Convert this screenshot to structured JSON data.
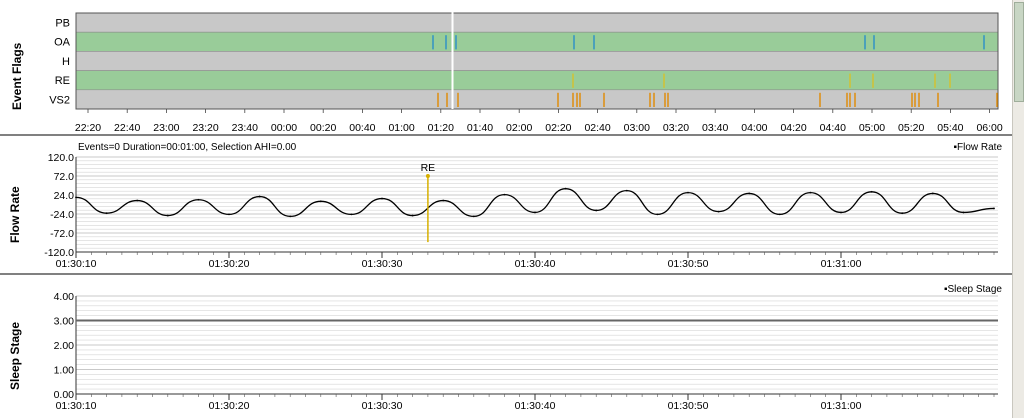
{
  "event_flags": {
    "title": "Event Flags",
    "rows": [
      "PB",
      "OA",
      "H",
      "RE",
      "VS2"
    ],
    "row_colors": [
      "#c8c8c8",
      "#99cc99",
      "#c8c8c8",
      "#99cc99",
      "#c8c8c8"
    ],
    "time_labels": [
      "22:20",
      "22:40",
      "23:00",
      "23:20",
      "23:40",
      "00:00",
      "00:20",
      "00:40",
      "01:00",
      "01:20",
      "01:40",
      "02:00",
      "02:20",
      "02:40",
      "03:00",
      "03:20",
      "03:40",
      "04:00",
      "04:20",
      "04:40",
      "05:00",
      "05:20",
      "05:40",
      "06:00"
    ],
    "cursor_color": "#ffffff",
    "oa_color": "#2a8fc8",
    "re_color": "#d7c02a",
    "vs2_color": "#e08a00"
  },
  "flow_rate": {
    "title": "Flow Rate",
    "info": "Events=0 Duration=00:01:00, Selection AHI=0.00",
    "legend": "Flow Rate",
    "y_ticks": [
      "120.0",
      "72.0",
      "24.0",
      "-24.0",
      "-72.0",
      "-120.0"
    ],
    "x_ticks": [
      "01:30:10",
      "01:30:20",
      "01:30:30",
      "01:30:40",
      "01:30:50",
      "01:31:00"
    ],
    "event_label": "RE",
    "event_color": "#d7b000"
  },
  "sleep_stage": {
    "title": "Sleep Stage",
    "legend": "Sleep Stage",
    "y_ticks": [
      "4.00",
      "3.00",
      "2.00",
      "1.00",
      "0.00"
    ],
    "x_ticks": [
      "01:30:10",
      "01:30:20",
      "01:30:30",
      "01:30:40",
      "01:30:50",
      "01:31:00"
    ]
  },
  "chart_data": [
    {
      "type": "line",
      "title": "",
      "ylabel": "Flow Rate",
      "ylim": [
        -120,
        120
      ],
      "x_range": [
        "01:30:10",
        "01:31:10"
      ],
      "x_seconds": [
        0,
        2,
        4,
        6,
        8,
        10,
        12,
        14,
        16,
        18,
        20,
        22,
        24,
        26,
        28,
        30,
        32,
        34,
        36,
        38,
        40,
        42,
        44,
        46,
        48,
        50,
        52,
        54,
        56,
        58,
        60
      ],
      "values": [
        18,
        -22,
        10,
        -28,
        12,
        -25,
        20,
        -30,
        8,
        -25,
        15,
        -28,
        10,
        -30,
        25,
        -20,
        40,
        -15,
        35,
        -25,
        30,
        -18,
        28,
        -25,
        30,
        -20,
        32,
        -22,
        28,
        -20,
        -10
      ],
      "annotation": {
        "label": "RE",
        "x_seconds": 23
      }
    },
    {
      "type": "line",
      "title": "",
      "ylabel": "Sleep Stage",
      "ylim": [
        0,
        4
      ],
      "x_range": [
        "01:30:10",
        "01:31:10"
      ],
      "series": [
        {
          "name": "Sleep Stage",
          "x_seconds": [
            0,
            60
          ],
          "values": [
            3,
            3
          ]
        }
      ]
    }
  ]
}
